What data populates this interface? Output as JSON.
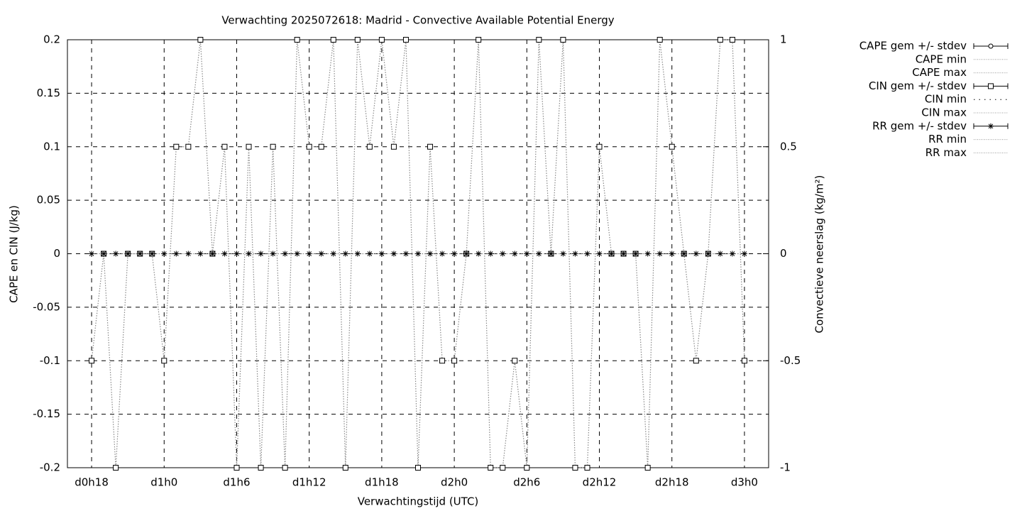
{
  "chart_data": {
    "type": "line",
    "title": "Verwachting 2025072618: Madrid - Convective Available Potential Energy",
    "xlabel": "Verwachtingstijd (UTC)",
    "ylabel": "CAPE en CIN (J/kg)",
    "y2label": "Convectieve neerslag (kg/m²)",
    "x": [
      18,
      19,
      20,
      21,
      22,
      23,
      24,
      25,
      26,
      27,
      28,
      29,
      30,
      31,
      32,
      33,
      34,
      35,
      36,
      37,
      38,
      39,
      40,
      41,
      42,
      43,
      44,
      45,
      46,
      47,
      48,
      49,
      50,
      51,
      52,
      53,
      54,
      55,
      56,
      57,
      58,
      59,
      60,
      61,
      62,
      63,
      64,
      65,
      66,
      67,
      68,
      69,
      70,
      71,
      72
    ],
    "series": [
      {
        "name": "CIN gem +/- stdev",
        "color": "#888888",
        "marker": "square",
        "values": [
          -0.1,
          0,
          -0.2,
          0,
          0,
          0,
          -0.1,
          0.1,
          0.1,
          0.2,
          0,
          0.1,
          -0.2,
          0.1,
          -0.2,
          0.1,
          -0.2,
          0.2,
          0.1,
          0.1,
          0.2,
          -0.2,
          0.2,
          0.1,
          0.2,
          0.1,
          0.2,
          -0.2,
          0.1,
          -0.1,
          -0.1,
          0,
          0.2,
          -0.2,
          -0.2,
          -0.1,
          -0.2,
          0.2,
          0,
          0.2,
          -0.2,
          -0.2,
          0.1,
          0,
          0,
          0,
          -0.2,
          0.2,
          0.1,
          0,
          -0.1,
          0,
          0.2,
          0.2,
          -0.1
        ]
      },
      {
        "name": "RR gem +/- stdev",
        "color": "#888888",
        "marker": "star",
        "axis": "y2",
        "values": [
          0,
          0,
          0,
          0,
          0,
          0,
          0,
          0,
          0,
          0,
          0,
          0,
          0,
          0,
          0,
          0,
          0,
          0,
          0,
          0,
          0,
          0,
          0,
          0,
          0,
          0,
          0,
          0,
          0,
          0,
          0,
          0,
          0,
          0,
          0,
          0,
          0,
          0,
          0,
          0,
          0,
          0,
          0,
          0,
          0,
          0,
          0,
          0,
          0,
          0,
          0,
          0,
          0,
          0,
          0
        ]
      }
    ],
    "legend": [
      "CAPE gem +/- stdev",
      "CAPE min",
      "CAPE max",
      "CIN gem +/- stdev",
      "CIN min",
      "CIN max",
      "RR gem +/- stdev",
      "RR min",
      "RR max"
    ],
    "xlim": [
      16,
      74
    ],
    "xticks": [
      {
        "value": 18,
        "label": "d0h18"
      },
      {
        "value": 24,
        "label": "d1h0"
      },
      {
        "value": 30,
        "label": "d1h6"
      },
      {
        "value": 36,
        "label": "d1h12"
      },
      {
        "value": 42,
        "label": "d1h18"
      },
      {
        "value": 48,
        "label": "d2h0"
      },
      {
        "value": 54,
        "label": "d2h6"
      },
      {
        "value": 60,
        "label": "d2h12"
      },
      {
        "value": 66,
        "label": "d2h18"
      },
      {
        "value": 72,
        "label": "d3h0"
      }
    ],
    "ylim": [
      -0.2,
      0.2
    ],
    "yticks": [
      0.2,
      0.15,
      0.1,
      0.05,
      0,
      -0.05,
      -0.1,
      -0.15,
      -0.2
    ],
    "y2lim": [
      -1,
      1
    ],
    "y2ticks": [
      1,
      0.5,
      0,
      -0.5,
      -1
    ],
    "grid": true
  }
}
